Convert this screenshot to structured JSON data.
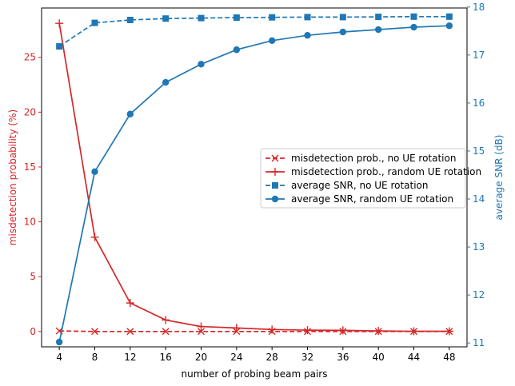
{
  "chart_data": {
    "type": "line",
    "title": "",
    "xlabel": "number of probing beam pairs",
    "ylabel_left": "misdetection probability (%)",
    "ylabel_right": "average SNR (dB)",
    "x": [
      4,
      8,
      12,
      16,
      20,
      24,
      28,
      32,
      36,
      40,
      44,
      48
    ],
    "xticks": [
      "4",
      "8",
      "12",
      "16",
      "20",
      "24",
      "28",
      "32",
      "36",
      "40",
      "44",
      "48"
    ],
    "ylim_left": [
      -1.4,
      29.5
    ],
    "yticks_left": [
      "0",
      "5",
      "10",
      "15",
      "20",
      "25"
    ],
    "ylim_right": [
      10.92,
      17.98
    ],
    "yticks_right": [
      "11",
      "12",
      "13",
      "14",
      "15",
      "16",
      "17",
      "18"
    ],
    "grid": false,
    "legend_position": "center-right",
    "colors": {
      "left_axis": "#d62728",
      "right_axis": "#1f77b4"
    },
    "series": [
      {
        "name": "misdetection prob., no UE rotation",
        "axis": "left",
        "color": "#d62728",
        "linestyle": "dashed",
        "marker": "x",
        "values": [
          0.05,
          0.0,
          0.0,
          0.0,
          0.0,
          0.0,
          0.0,
          0.0,
          0.0,
          0.0,
          0.0,
          0.0
        ]
      },
      {
        "name": "misdetection prob., random UE rotation",
        "axis": "left",
        "color": "#d62728",
        "linestyle": "solid",
        "marker": "+",
        "values": [
          28.1,
          8.6,
          2.6,
          1.05,
          0.45,
          0.32,
          0.18,
          0.12,
          0.1,
          0.05,
          0.02,
          0.02
        ]
      },
      {
        "name": "average SNR, no UE rotation",
        "axis": "right",
        "color": "#1f77b4",
        "linestyle": "dashed",
        "marker": "square",
        "values": [
          17.18,
          17.67,
          17.73,
          17.76,
          17.77,
          17.78,
          17.785,
          17.79,
          17.79,
          17.795,
          17.8,
          17.8
        ]
      },
      {
        "name": "average SNR, random UE rotation",
        "axis": "right",
        "color": "#1f77b4",
        "linestyle": "solid",
        "marker": "circle",
        "values": [
          11.02,
          14.57,
          15.77,
          16.43,
          16.81,
          17.11,
          17.3,
          17.41,
          17.48,
          17.53,
          17.58,
          17.61
        ]
      }
    ]
  }
}
